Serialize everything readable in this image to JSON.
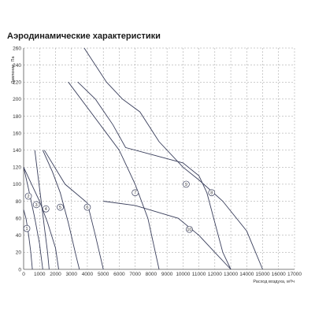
{
  "chart_data": {
    "type": "line",
    "title": "Аэродинамические характеристики",
    "xlabel": "Расход воздуха, м³/ч",
    "ylabel": "Давление, Па",
    "xlim": [
      0,
      17000
    ],
    "ylim": [
      0,
      260
    ],
    "xticks": [
      "0",
      "1000",
      "2000",
      "3000",
      "4000",
      "5000",
      "6000",
      "7000",
      "8000",
      "9000",
      "10000",
      "11000",
      "12000",
      "13000",
      "14000",
      "15000",
      "16000",
      "17000"
    ],
    "yticks": [
      "0",
      "20",
      "40",
      "60",
      "80",
      "100",
      "120",
      "140",
      "160",
      "180",
      "200",
      "220",
      "240",
      "260"
    ],
    "grid": true,
    "series": [
      {
        "name": "1",
        "label_at": [
          200,
          48
        ],
        "points": [
          [
            0,
            70
          ],
          [
            150,
            60
          ],
          [
            300,
            42
          ],
          [
            450,
            20
          ],
          [
            550,
            0
          ]
        ]
      },
      {
        "name": "2",
        "label_at": [
          300,
          86
        ],
        "points": [
          [
            0,
            120
          ],
          [
            300,
            95
          ],
          [
            700,
            60
          ],
          [
            1000,
            30
          ],
          [
            1200,
            0
          ]
        ]
      },
      {
        "name": "3",
        "label_at": [
          800,
          76
        ],
        "points": [
          [
            700,
            140
          ],
          [
            900,
            110
          ],
          [
            1100,
            80
          ],
          [
            1300,
            50
          ],
          [
            1500,
            20
          ],
          [
            1600,
            0
          ]
        ]
      },
      {
        "name": "4",
        "label_at": [
          1400,
          71
        ],
        "points": [
          [
            0,
            120
          ],
          [
            500,
            100
          ],
          [
            1000,
            80
          ],
          [
            1500,
            55
          ],
          [
            2000,
            25
          ],
          [
            2200,
            0
          ]
        ]
      },
      {
        "name": "5",
        "label_at": [
          2300,
          73
        ],
        "points": [
          [
            1200,
            140
          ],
          [
            1800,
            115
          ],
          [
            2300,
            90
          ],
          [
            2800,
            55
          ],
          [
            3300,
            15
          ],
          [
            3500,
            0
          ]
        ]
      },
      {
        "name": "6",
        "label_at": [
          4000,
          73
        ],
        "points": [
          [
            1300,
            140
          ],
          [
            2600,
            100
          ],
          [
            4000,
            78
          ],
          [
            4500,
            40
          ],
          [
            5000,
            0
          ]
        ]
      },
      {
        "name": "7",
        "label_at": [
          7000,
          90
        ],
        "points": [
          [
            2800,
            220
          ],
          [
            5000,
            165
          ],
          [
            6000,
            140
          ],
          [
            7000,
            100
          ],
          [
            7800,
            60
          ],
          [
            8500,
            0
          ]
        ]
      },
      {
        "name": "8",
        "label_at": [
          11800,
          90
        ],
        "points": [
          [
            3800,
            260
          ],
          [
            5200,
            220
          ],
          [
            6200,
            200
          ],
          [
            7300,
            185
          ],
          [
            8500,
            150
          ],
          [
            10000,
            120
          ],
          [
            11000,
            105
          ],
          [
            12500,
            80
          ],
          [
            14000,
            45
          ],
          [
            15000,
            0
          ]
        ]
      },
      {
        "name": "9",
        "label_at": [
          10200,
          100
        ],
        "points": [
          [
            3400,
            220
          ],
          [
            4500,
            200
          ],
          [
            5600,
            170
          ],
          [
            6400,
            143
          ],
          [
            8000,
            135
          ],
          [
            10000,
            125
          ],
          [
            11000,
            110
          ],
          [
            11500,
            90
          ],
          [
            12000,
            55
          ],
          [
            12500,
            20
          ],
          [
            13000,
            0
          ]
        ]
      },
      {
        "name": "10",
        "label_at": [
          10400,
          47
        ],
        "points": [
          [
            5000,
            80
          ],
          [
            7000,
            75
          ],
          [
            9700,
            60
          ],
          [
            11000,
            40
          ],
          [
            12000,
            20
          ],
          [
            13000,
            0
          ]
        ]
      }
    ]
  }
}
